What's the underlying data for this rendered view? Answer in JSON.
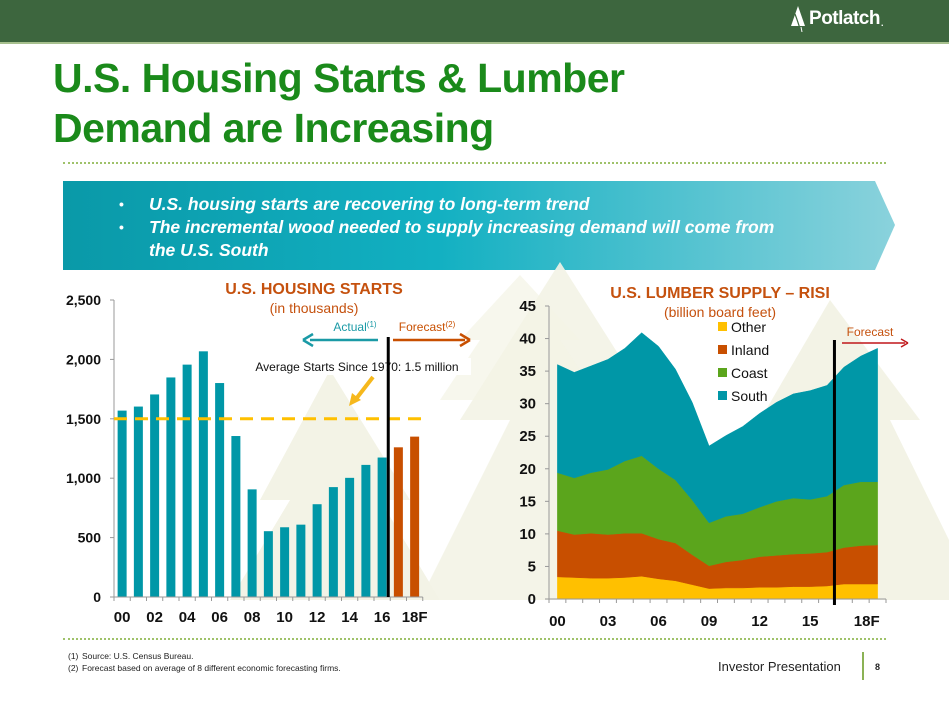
{
  "header": {
    "logo_text": "Potlatch",
    "logo_mark": "."
  },
  "title": {
    "line1": "U.S. Housing Starts & Lumber",
    "line2": "Demand are Increasing"
  },
  "banner": {
    "bullets": [
      "U.S. housing starts are recovering to long-term trend",
      "The incremental wood needed to supply increasing demand will come from the U.S. South"
    ]
  },
  "colors": {
    "brand_green": "#3d663e",
    "title_green": "#1a8a1a",
    "teal": "#0097a7",
    "orange": "#c84f00",
    "yellow": "#ffc000",
    "green": "#5ba51c",
    "chart_title": "#c5510e"
  },
  "chart_data": [
    {
      "type": "bar",
      "title": "U.S. HOUSING STARTS",
      "subtitle": "(in thousands)",
      "xlabel": "",
      "ylabel": "",
      "ylim": [
        0,
        2500
      ],
      "yticks": [
        0,
        500,
        1000,
        1500,
        2000,
        2500
      ],
      "ytick_labels": [
        "0",
        "500",
        "1,000",
        "1,500",
        "2,000",
        "2,500"
      ],
      "categories": [
        "00",
        "01",
        "02",
        "03",
        "04",
        "05",
        "06",
        "07",
        "08",
        "09",
        "10",
        "11",
        "12",
        "13",
        "14",
        "15",
        "16",
        "17F",
        "18F"
      ],
      "xtick_labels": [
        "00",
        "",
        "02",
        "",
        "04",
        "",
        "06",
        "",
        "08",
        "",
        "10",
        "",
        "12",
        "",
        "14",
        "",
        "16",
        "",
        "18F"
      ],
      "series": [
        {
          "name": "Actual",
          "color": "#0097a7",
          "values": [
            1569,
            1603,
            1705,
            1848,
            1956,
            2068,
            1801,
            1355,
            906,
            554,
            587,
            609,
            781,
            925,
            1003,
            1112,
            1174,
            null,
            null
          ]
        },
        {
          "name": "Forecast",
          "color": "#c84f00",
          "values": [
            null,
            null,
            null,
            null,
            null,
            null,
            null,
            null,
            null,
            null,
            null,
            null,
            null,
            null,
            null,
            null,
            null,
            1260,
            1350
          ]
        }
      ],
      "reference_line": {
        "value": 1500,
        "label": "Average Starts Since 1970: 1.5 million",
        "color": "#ffc000",
        "style": "dashed"
      },
      "divider_after": "16",
      "annotations": {
        "actual_label": "Actual",
        "actual_note": "(1)",
        "forecast_label": "Forecast",
        "forecast_note": "(2)"
      },
      "grid": false
    },
    {
      "type": "area",
      "stacked": true,
      "title": "U.S. LUMBER SUPPLY – RISI",
      "subtitle": "(billion board feet)",
      "xlabel": "",
      "ylabel": "",
      "ylim": [
        0,
        45
      ],
      "yticks": [
        0,
        5,
        10,
        15,
        20,
        25,
        30,
        35,
        40,
        45
      ],
      "x": [
        2000,
        2001,
        2002,
        2003,
        2004,
        2005,
        2006,
        2007,
        2008,
        2009,
        2010,
        2011,
        2012,
        2013,
        2014,
        2015,
        2016,
        2017,
        2018,
        2019
      ],
      "xtick_labels": [
        "00",
        "03",
        "06",
        "09",
        "12",
        "15",
        "18F"
      ],
      "xtick_positions": [
        2000,
        2003,
        2006,
        2009,
        2012,
        2015,
        2018
      ],
      "series": [
        {
          "name": "Other",
          "color": "#ffc000",
          "values": [
            3.4,
            3.3,
            3.2,
            3.2,
            3.3,
            3.5,
            3.1,
            2.8,
            2.2,
            1.6,
            1.7,
            1.7,
            1.8,
            1.8,
            1.9,
            1.9,
            2.0,
            2.3,
            2.3,
            2.3
          ]
        },
        {
          "name": "Inland",
          "color": "#c84f00",
          "values": [
            7.1,
            6.6,
            6.9,
            6.7,
            6.8,
            6.6,
            6.1,
            5.8,
            4.6,
            3.5,
            4.0,
            4.3,
            4.7,
            4.9,
            5.0,
            5.1,
            5.2,
            5.6,
            5.9,
            6.0
          ]
        },
        {
          "name": "Coast",
          "color": "#5ba51c",
          "values": [
            8.9,
            8.7,
            9.3,
            10.0,
            11.1,
            11.9,
            10.8,
            9.7,
            8.4,
            6.6,
            7.0,
            7.1,
            7.6,
            8.3,
            8.6,
            8.3,
            8.6,
            9.6,
            9.8,
            9.7
          ]
        },
        {
          "name": "South",
          "color": "#0097a7",
          "values": [
            16.6,
            16.2,
            16.4,
            16.9,
            17.3,
            18.9,
            18.8,
            17.0,
            15.0,
            11.8,
            12.4,
            13.4,
            14.4,
            15.2,
            16.0,
            16.7,
            17.0,
            18.1,
            19.3,
            20.5
          ]
        }
      ],
      "legend": {
        "position": "top-center",
        "order": [
          "Other",
          "Inland",
          "Coast",
          "South"
        ]
      },
      "divider_after": 2016,
      "annotations": {
        "forecast_label": "Forecast"
      },
      "grid": false
    }
  ],
  "footer": {
    "footnotes": [
      {
        "num": "(1)",
        "text": "Source: U.S. Census Bureau."
      },
      {
        "num": "(2)",
        "text": "Forecast based on average of 8 different economic forecasting firms."
      }
    ],
    "label": "Investor Presentation",
    "page": "8"
  }
}
